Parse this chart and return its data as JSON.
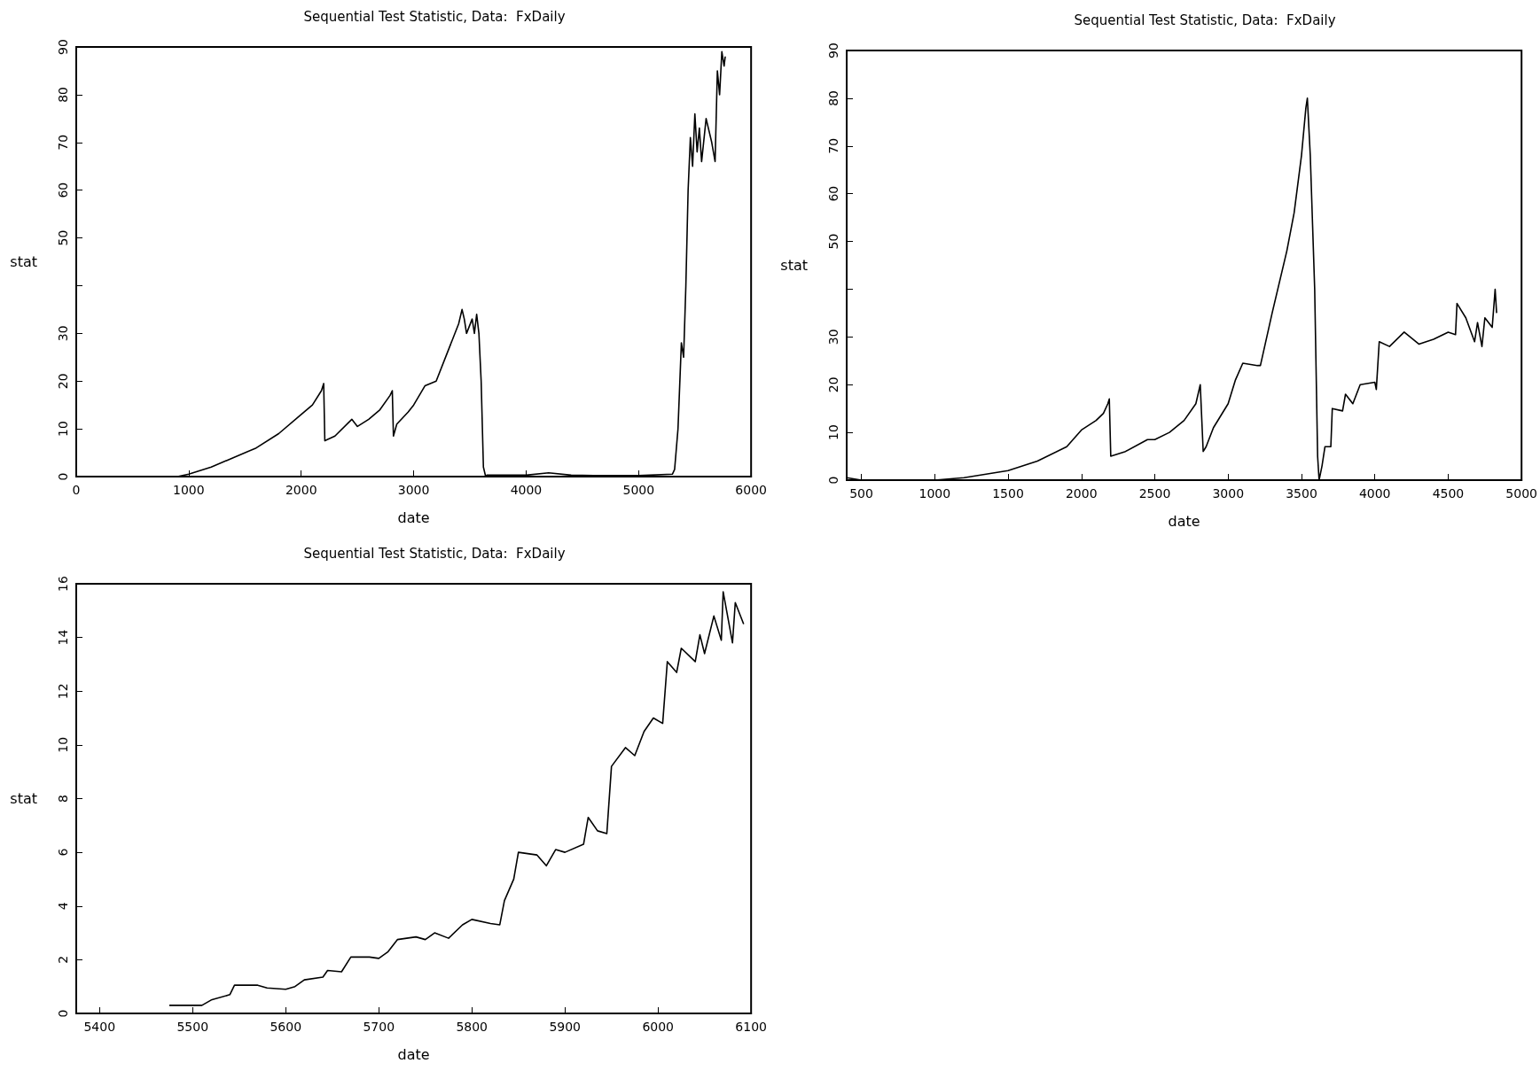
{
  "chart_data": [
    {
      "type": "line",
      "title": "Sequential Test Statistic, Data:  FxDaily",
      "xlabel": "date",
      "ylabel": "stat",
      "xlim": [
        0,
        6000
      ],
      "xticks": [
        0,
        1000,
        2000,
        3000,
        4000,
        5000,
        6000
      ],
      "ylim": [
        0,
        90
      ],
      "yticks": [
        0,
        10,
        20,
        30,
        {
          "value": 40,
          "label": null
        },
        50,
        60,
        70,
        80,
        90
      ],
      "grid": false,
      "marker": "none",
      "line_style": "solid",
      "series": [
        {
          "color": "#000000",
          "x": [
            0,
            900,
            1000,
            1200,
            1400,
            1600,
            1800,
            2000,
            2100,
            2180,
            2200,
            2210,
            2300,
            2450,
            2500,
            2600,
            2700,
            2790,
            2810,
            2820,
            2850,
            2950,
            3000,
            3100,
            3200,
            3300,
            3400,
            3430,
            3450,
            3470,
            3520,
            3540,
            3560,
            3580,
            3600,
            3620,
            3640,
            3650,
            4000,
            4200,
            4400,
            4600,
            5000,
            5300,
            5320,
            5350,
            5380,
            5400,
            5420,
            5440,
            5460,
            5480,
            5500,
            5520,
            5540,
            5560,
            5600,
            5650,
            5680,
            5700,
            5720,
            5740,
            5760,
            5770
          ],
          "values": [
            0,
            0,
            0.5,
            2,
            4,
            6,
            9,
            13,
            15,
            18,
            19.5,
            7.5,
            8.5,
            12,
            10.5,
            12,
            14,
            17,
            18,
            8.5,
            11,
            13.5,
            15,
            19,
            20,
            26,
            32,
            35,
            33,
            30,
            33,
            30,
            34,
            30,
            20,
            2,
            0,
            0.3,
            0.3,
            0.8,
            0.3,
            0.2,
            0.2,
            0.5,
            1.5,
            10,
            28,
            25,
            40,
            60,
            71,
            65,
            76,
            68,
            73,
            66,
            75,
            70,
            66,
            85,
            80,
            89,
            86,
            88
          ]
        }
      ]
    },
    {
      "type": "line",
      "title": "Sequential Test Statistic, Data:  FxDaily",
      "xlabel": "date",
      "ylabel": "stat",
      "xlim": [
        400,
        5000
      ],
      "xticks": [
        500,
        1000,
        1500,
        2000,
        2500,
        3000,
        3500,
        4000,
        4500,
        5000
      ],
      "ylim": [
        0,
        90
      ],
      "yticks": [
        0,
        10,
        20,
        30,
        {
          "value": 40,
          "label": null
        },
        50,
        60,
        70,
        80,
        90
      ],
      "grid": false,
      "marker": "none",
      "line_style": "solid",
      "series": [
        {
          "color": "#000000",
          "x": [
            400,
            500,
            1000,
            1200,
            1500,
            1700,
            1900,
            2000,
            2100,
            2150,
            2180,
            2190,
            2200,
            2300,
            2450,
            2500,
            2600,
            2700,
            2780,
            2810,
            2830,
            2850,
            2900,
            3000,
            3050,
            3100,
            3200,
            3220,
            3300,
            3400,
            3450,
            3500,
            3530,
            3540,
            3560,
            3590,
            3610,
            3620,
            3640,
            3660,
            3700,
            3710,
            3780,
            3800,
            3850,
            3900,
            4000,
            4010,
            4030,
            4100,
            4200,
            4300,
            4400,
            4500,
            4550,
            4560,
            4620,
            4680,
            4700,
            4730,
            4750,
            4800,
            4810,
            4820,
            4830
          ],
          "values": [
            0.5,
            0,
            0,
            0.5,
            2,
            4,
            7,
            10.5,
            12.5,
            14,
            16,
            17,
            5,
            6,
            8.5,
            8.5,
            10,
            12.5,
            16,
            20,
            6,
            7,
            11,
            16,
            21,
            24.5,
            24,
            24,
            35,
            48,
            56,
            68,
            78,
            80,
            68,
            40,
            5,
            0,
            3,
            7,
            7,
            15,
            14.5,
            18,
            16,
            20,
            20.5,
            19,
            29,
            28,
            31,
            28.5,
            29.5,
            31,
            30.5,
            37,
            34,
            29,
            33,
            28,
            34,
            32,
            36,
            40,
            35
          ]
        }
      ]
    },
    {
      "type": "line",
      "title": "Sequential Test Statistic, Data:  FxDaily",
      "xlabel": "date",
      "ylabel": "stat",
      "xlim": [
        5375,
        6100
      ],
      "xticks": [
        5400,
        5500,
        5600,
        5700,
        5800,
        5900,
        6000,
        6100
      ],
      "ylim": [
        0,
        16
      ],
      "yticks": [
        0,
        2,
        4,
        6,
        8,
        10,
        12,
        14,
        16
      ],
      "grid": false,
      "marker": "none",
      "line_style": "solid",
      "series": [
        {
          "color": "#000000",
          "x": [
            5475,
            5500,
            5510,
            5520,
            5540,
            5545,
            5570,
            5580,
            5600,
            5610,
            5620,
            5640,
            5645,
            5660,
            5670,
            5690,
            5700,
            5710,
            5720,
            5740,
            5750,
            5760,
            5775,
            5790,
            5800,
            5820,
            5830,
            5835,
            5845,
            5850,
            5870,
            5880,
            5890,
            5900,
            5920,
            5925,
            5935,
            5945,
            5950,
            5965,
            5975,
            5985,
            5995,
            6005,
            6010,
            6020,
            6025,
            6040,
            6045,
            6050,
            6060,
            6068,
            6070,
            6080,
            6083,
            6092
          ],
          "values": [
            0.3,
            0.3,
            0.3,
            0.5,
            0.7,
            1.05,
            1.05,
            0.95,
            0.9,
            1.0,
            1.25,
            1.35,
            1.6,
            1.55,
            2.1,
            2.1,
            2.05,
            2.3,
            2.75,
            2.85,
            2.75,
            3.0,
            2.8,
            3.3,
            3.5,
            3.35,
            3.3,
            4.2,
            5.0,
            6.0,
            5.9,
            5.5,
            6.1,
            6.0,
            6.3,
            7.3,
            6.8,
            6.7,
            9.2,
            9.9,
            9.6,
            10.5,
            11.0,
            10.8,
            13.1,
            12.7,
            13.6,
            13.1,
            14.1,
            13.4,
            14.8,
            13.9,
            15.7,
            13.8,
            15.3,
            14.5
          ]
        }
      ]
    }
  ]
}
